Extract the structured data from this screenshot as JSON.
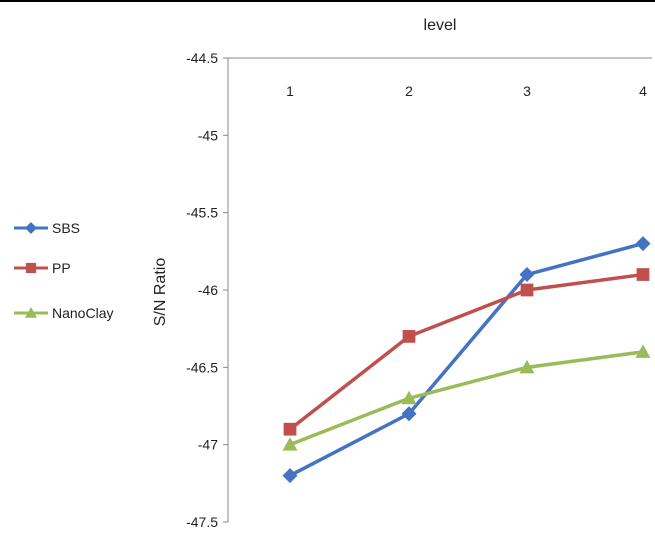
{
  "chart_data": {
    "type": "line",
    "title": "",
    "xlabel": "level",
    "ylabel": "S/N Ratio",
    "categories": [
      "1",
      "2",
      "3",
      "4"
    ],
    "ylim": [
      -47.5,
      -44.5
    ],
    "yticks": [
      "-44.5",
      "-45",
      "-45.5",
      "-46",
      "-46.5",
      "-47",
      "-47.5"
    ],
    "y_axis_inverted": true,
    "x_axis_position": "top",
    "grid": false,
    "legend_position": "left",
    "series": [
      {
        "name": "SBS",
        "values": [
          -47.2,
          -46.8,
          -45.9,
          -45.7
        ],
        "color": "#4472C4",
        "marker": "diamond"
      },
      {
        "name": "PP",
        "values": [
          -46.9,
          -46.3,
          -46.0,
          -45.9
        ],
        "color": "#C0504D",
        "marker": "square"
      },
      {
        "name": "NanoClay",
        "values": [
          -47.0,
          -46.7,
          -46.5,
          -46.4
        ],
        "color": "#9BBB59",
        "marker": "triangle"
      }
    ]
  }
}
